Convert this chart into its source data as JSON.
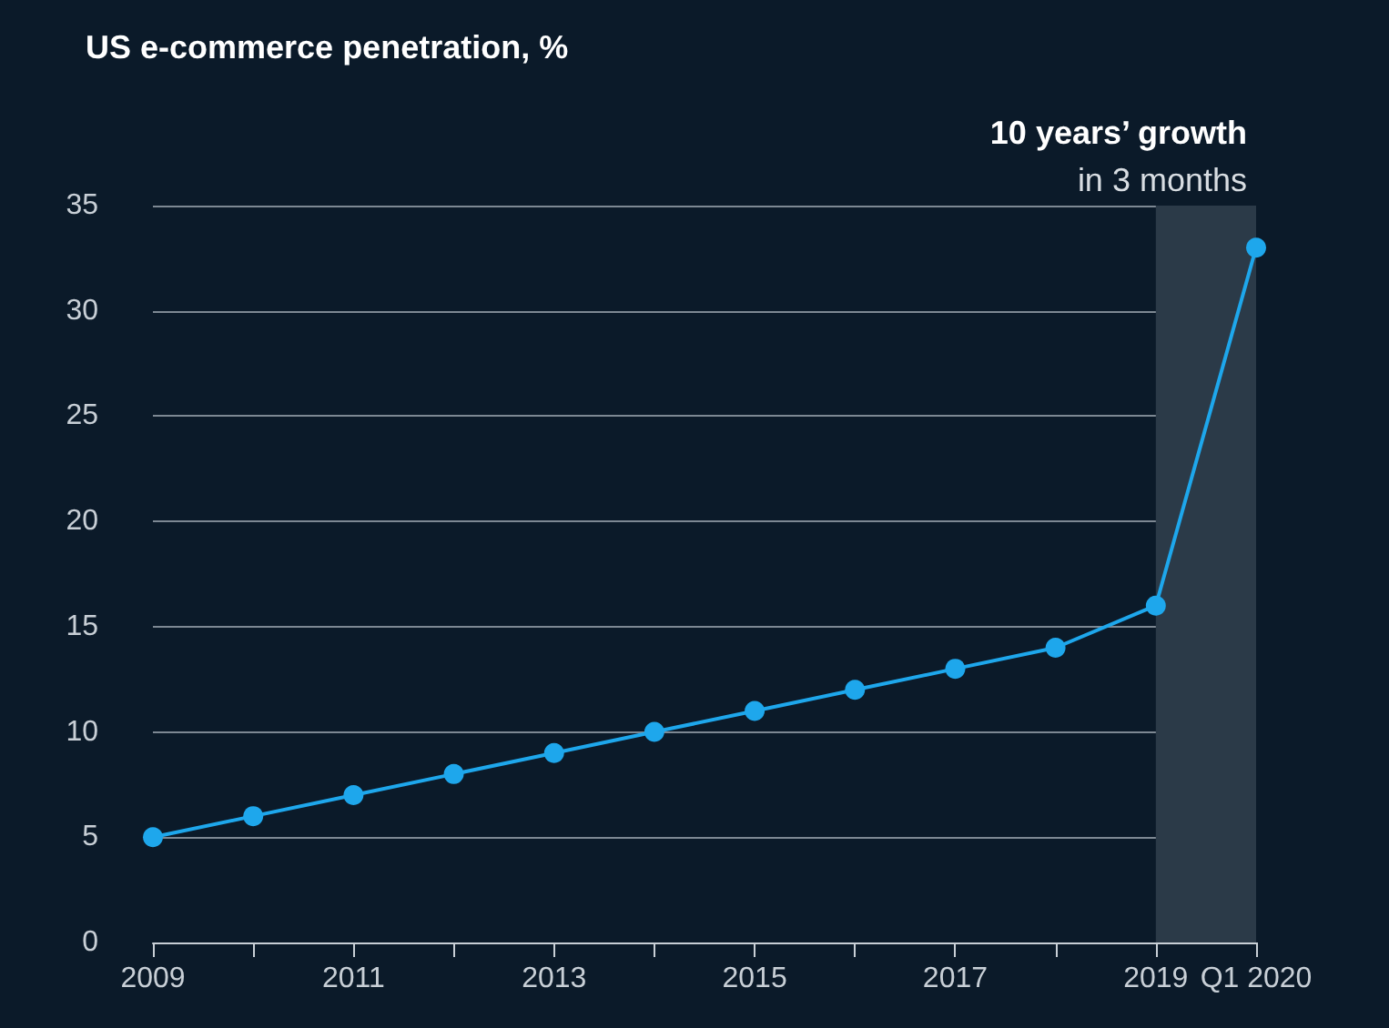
{
  "chart_data": {
    "type": "line",
    "title": "US e-commerce penetration, %",
    "categories": [
      "2009",
      null,
      "2011",
      null,
      "2013",
      null,
      "2015",
      null,
      "2017",
      null,
      "2019",
      "Q1 2020"
    ],
    "series": [
      {
        "color": "#1ea7ec",
        "values": [
          5,
          6,
          7,
          8,
          9,
          10,
          11,
          12,
          13,
          14,
          16,
          33
        ]
      }
    ],
    "ylim": [
      0,
      35
    ],
    "yticks": [
      0,
      5,
      10,
      15,
      20,
      25,
      30,
      35
    ],
    "grid": "y",
    "marker": "circle",
    "line_style": "solid",
    "bands": [
      {
        "axis": "x",
        "from": "2019",
        "to": "Q1 2020",
        "label": "10 years’ growth",
        "color": "#2b3a48"
      }
    ],
    "annotations": [
      "in 3 months"
    ]
  }
}
